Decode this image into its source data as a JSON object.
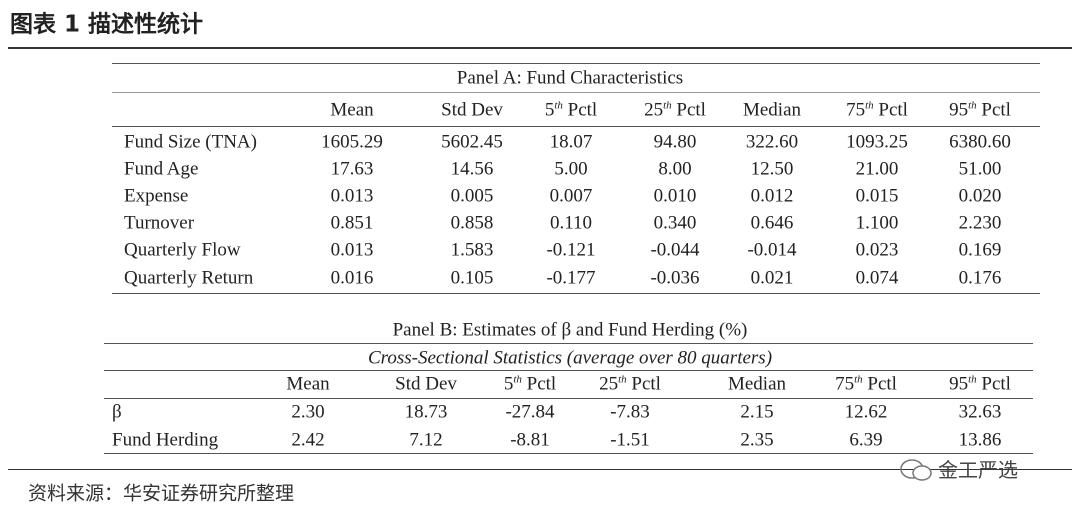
{
  "header": {
    "title": "图表 1 描述性统计"
  },
  "panel_a": {
    "title": "Panel A: Fund Characteristics",
    "columns": [
      "Mean",
      "Std Dev",
      {
        "base": "5",
        "sup": "th",
        "rest": " Pctl"
      },
      {
        "base": "25",
        "sup": "th",
        "rest": " Pctl"
      },
      "Median",
      {
        "base": "75",
        "sup": "th",
        "rest": " Pctl"
      },
      {
        "base": "95",
        "sup": "th",
        "rest": " Pctl"
      }
    ],
    "rows": [
      {
        "label": "Fund Size (TNA)",
        "values": [
          "1605.29",
          "5602.45",
          "18.07",
          "94.80",
          "322.60",
          "1093.25",
          "6380.60"
        ]
      },
      {
        "label": "Fund Age",
        "values": [
          "17.63",
          "14.56",
          "5.00",
          "8.00",
          "12.50",
          "21.00",
          "51.00"
        ]
      },
      {
        "label": "Expense",
        "values": [
          "0.013",
          "0.005",
          "0.007",
          "0.010",
          "0.012",
          "0.015",
          "0.020"
        ]
      },
      {
        "label": "Turnover",
        "values": [
          "0.851",
          "0.858",
          "0.110",
          "0.340",
          "0.646",
          "1.100",
          "2.230"
        ]
      },
      {
        "label": "Quarterly Flow",
        "values": [
          "0.013",
          "1.583",
          "-0.121",
          "-0.044",
          "-0.014",
          "0.023",
          "0.169"
        ]
      },
      {
        "label": "Quarterly Return",
        "values": [
          "0.016",
          "0.105",
          "-0.177",
          "-0.036",
          "0.021",
          "0.074",
          "0.176"
        ]
      }
    ]
  },
  "panel_b": {
    "title": "Panel B: Estimates of β and Fund Herding (%)",
    "subtitle": "Cross-Sectional Statistics (average over 80 quarters)",
    "columns": [
      "Mean",
      "Std Dev",
      {
        "base": "5",
        "sup": "th",
        "rest": " Pctl"
      },
      {
        "base": "25",
        "sup": "th",
        "rest": " Pctl"
      },
      "Median",
      {
        "base": "75",
        "sup": "th",
        "rest": " Pctl"
      },
      {
        "base": "95",
        "sup": "th",
        "rest": " Pctl"
      }
    ],
    "rows": [
      {
        "label": "β",
        "values": [
          "2.30",
          "18.73",
          "-27.84",
          "-7.83",
          "2.15",
          "12.62",
          "32.63"
        ]
      },
      {
        "label": "Fund Herding",
        "values": [
          "2.42",
          "7.12",
          "-8.81",
          "-1.51",
          "2.35",
          "6.39",
          "13.86"
        ]
      }
    ]
  },
  "footer": {
    "source": "资料来源：华安证券研究所整理",
    "watermark": "金工严选"
  }
}
